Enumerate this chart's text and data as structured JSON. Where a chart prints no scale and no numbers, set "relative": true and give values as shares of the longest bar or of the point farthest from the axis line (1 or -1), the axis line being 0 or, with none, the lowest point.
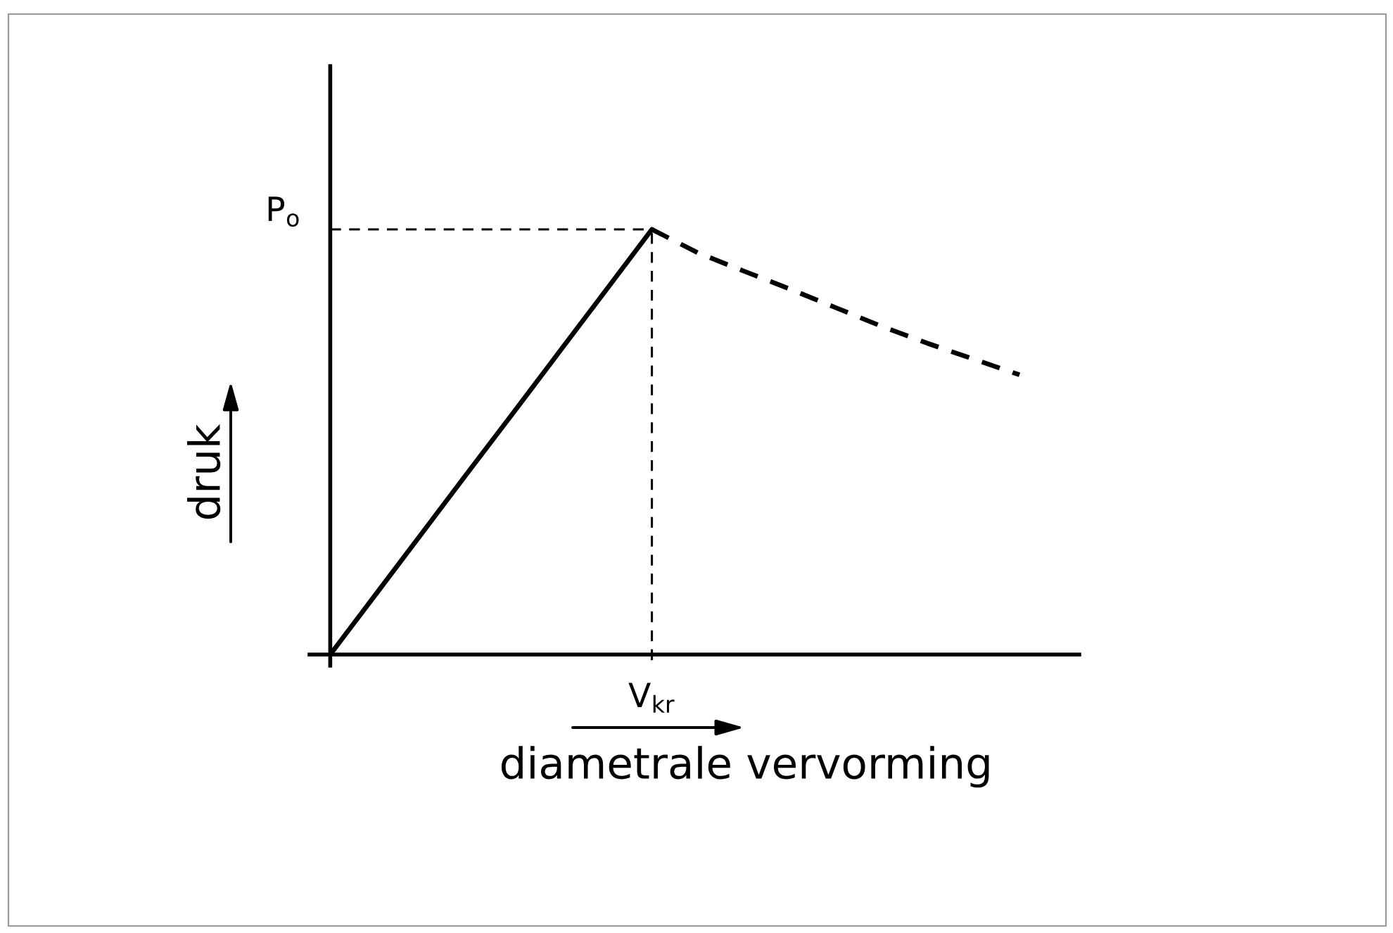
{
  "chart_data": {
    "type": "line",
    "relative": true,
    "xlabel": "diametrale vervorming",
    "ylabel": "druk",
    "categories": [
      null,
      null,
      null,
      null,
      null,
      null,
      null,
      null,
      null,
      null,
      null,
      null,
      null,
      null,
      null,
      null
    ],
    "series": [
      {
        "color": "#000000",
        "line_style": "solid",
        "values": [
          0,
          0.143,
          0.286,
          0.429,
          0.571,
          0.714,
          0.857,
          1,
          null,
          null,
          null,
          null,
          null,
          null,
          null,
          null
        ]
      },
      {
        "color": "#000000",
        "line_style": "dashed",
        "values": [
          null,
          null,
          null,
          null,
          null,
          null,
          null,
          1,
          0.945,
          0.902,
          0.86,
          0.816,
          0.772,
          0.732,
          0.695,
          0.658
        ]
      }
    ],
    "ref_lines": [
      {
        "axis": "y",
        "value": 1,
        "label": "P$_{o}$",
        "line_style": "dashed"
      }
    ],
    "annotations": [
      "V$_{kr}$"
    ]
  }
}
